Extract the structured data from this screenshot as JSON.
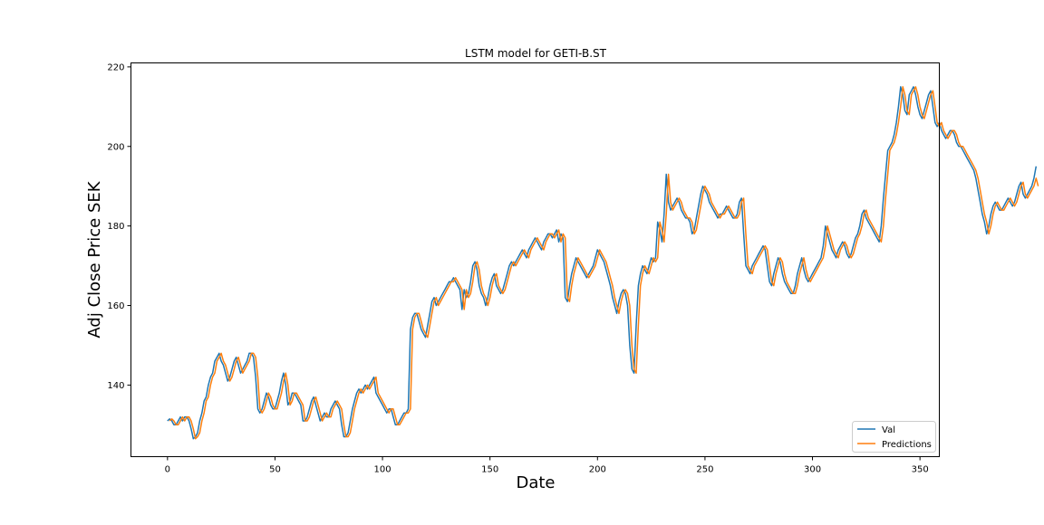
{
  "chart_data": {
    "type": "line",
    "title": "LSTM model for GETI-B.ST",
    "xlabel": "Date",
    "ylabel": "Adj Close Price SEK",
    "xlim": [
      -17,
      359
    ],
    "ylim": [
      122,
      221
    ],
    "xticks": [
      0,
      50,
      100,
      150,
      200,
      250,
      300,
      350
    ],
    "yticks": [
      140,
      160,
      180,
      200,
      220
    ],
    "grid": false,
    "legend": {
      "position": "lower-right"
    },
    "series": [
      {
        "name": "Val",
        "color": "#1f77b4",
        "x_start": 0,
        "values": [
          131,
          131.5,
          131,
          130,
          130,
          131,
          132,
          131,
          132,
          132,
          131,
          129,
          126.5,
          127,
          128,
          131,
          133,
          136,
          137,
          140,
          142,
          143,
          146,
          147,
          148,
          146,
          145,
          143,
          141,
          142,
          144,
          146,
          147,
          145,
          143,
          144,
          145,
          146,
          148,
          148,
          147,
          142,
          134,
          133,
          134,
          136,
          138,
          137,
          135,
          134,
          134,
          136,
          138,
          141,
          143,
          140,
          135,
          136,
          138,
          138,
          137,
          136,
          135,
          131,
          131,
          132,
          134,
          136,
          137,
          135,
          133,
          131,
          132,
          133,
          132,
          132,
          134,
          135,
          136,
          135,
          134,
          130,
          127,
          127,
          128,
          131,
          134,
          136,
          138,
          139,
          138,
          139,
          140,
          139,
          140,
          141,
          142,
          138,
          137,
          136,
          135,
          134,
          133,
          134,
          134,
          132,
          130,
          130,
          131,
          132,
          133,
          133,
          134,
          154,
          157,
          158,
          158,
          156,
          154,
          153,
          152,
          155,
          158,
          161,
          162,
          160,
          161,
          162,
          163,
          164,
          165,
          166,
          166,
          167,
          166,
          165,
          164,
          159,
          164,
          162,
          163,
          166,
          170,
          171,
          169,
          165,
          163,
          162,
          160,
          162,
          165,
          167,
          168,
          165,
          164,
          163,
          164,
          166,
          168,
          170,
          171,
          170,
          171,
          172,
          173,
          174,
          173,
          172,
          174,
          175,
          176,
          177,
          176,
          175,
          174,
          176,
          177,
          178,
          178,
          177,
          178,
          179,
          176,
          178,
          177,
          162,
          161,
          165,
          168,
          170,
          172,
          171,
          170,
          169,
          168,
          167,
          168,
          169,
          170,
          172,
          174,
          173,
          172,
          171,
          169,
          167,
          165,
          162,
          160,
          158,
          161,
          163,
          164,
          163,
          160,
          150,
          144,
          143,
          155,
          165,
          168,
          170,
          169,
          168,
          170,
          172,
          171,
          172,
          181,
          179,
          176,
          183,
          193,
          186,
          184,
          185,
          186,
          187,
          186,
          184,
          183,
          182,
          182,
          181,
          178,
          179,
          182,
          185,
          188,
          190,
          189,
          188,
          186,
          185,
          184,
          183,
          182,
          183,
          183,
          184,
          185,
          184,
          183,
          182,
          182,
          183,
          186,
          187,
          178,
          170,
          169,
          168,
          170,
          171,
          172,
          173,
          174,
          175,
          174,
          170,
          166,
          165,
          168,
          170,
          172,
          171,
          168,
          166,
          165,
          164,
          163,
          163,
          165,
          168,
          170,
          172,
          169,
          167,
          166,
          167,
          168,
          169,
          170,
          171,
          172,
          175,
          180,
          178,
          176,
          174,
          173,
          172,
          174,
          175,
          176,
          175,
          173,
          172,
          173,
          175,
          177,
          178,
          180,
          183,
          184,
          182,
          181,
          180,
          179,
          178,
          177,
          176,
          180,
          187,
          193,
          199,
          200,
          201,
          203,
          206,
          210,
          215,
          213,
          209,
          208,
          213,
          214,
          215,
          213,
          210,
          208,
          207,
          209,
          211,
          213,
          214,
          210,
          206,
          205,
          206,
          204,
          203,
          202,
          203,
          204,
          204,
          203,
          201,
          200,
          200,
          199,
          198,
          197,
          196,
          195,
          194,
          192,
          189,
          186,
          183,
          181,
          178,
          180,
          183,
          185,
          186,
          185,
          184,
          184,
          185,
          186,
          187,
          186,
          185,
          186,
          188,
          190,
          191,
          188,
          187,
          188,
          189,
          190,
          192,
          195
        ]
      },
      {
        "name": "Predictions",
        "color": "#ff7f0e",
        "x_start": 1,
        "values": [
          131,
          131.5,
          131,
          130,
          130,
          131,
          132,
          131,
          132,
          132,
          131,
          129,
          126.5,
          127,
          128,
          131,
          133,
          136,
          137,
          140,
          142,
          143,
          146,
          147,
          148,
          146,
          145,
          143,
          141,
          142,
          144,
          146,
          147,
          145,
          143,
          144,
          145,
          146,
          148,
          148,
          147,
          142,
          134,
          133,
          134,
          136,
          138,
          137,
          135,
          134,
          134,
          136,
          138,
          141,
          143,
          140,
          135,
          136,
          138,
          138,
          137,
          136,
          135,
          131,
          131,
          132,
          134,
          136,
          137,
          135,
          133,
          131,
          132,
          133,
          132,
          132,
          134,
          135,
          136,
          135,
          134,
          130,
          127,
          127,
          128,
          131,
          134,
          136,
          138,
          139,
          138,
          139,
          140,
          139,
          140,
          141,
          142,
          138,
          137,
          136,
          135,
          134,
          133,
          134,
          134,
          132,
          130,
          130,
          131,
          132,
          133,
          133,
          134,
          154,
          157,
          158,
          158,
          156,
          154,
          153,
          152,
          155,
          158,
          161,
          162,
          160,
          161,
          162,
          163,
          164,
          165,
          166,
          166,
          167,
          166,
          165,
          164,
          159,
          164,
          162,
          163,
          166,
          170,
          171,
          169,
          165,
          163,
          162,
          160,
          162,
          165,
          167,
          168,
          165,
          164,
          163,
          164,
          166,
          168,
          170,
          171,
          170,
          171,
          172,
          173,
          174,
          173,
          172,
          174,
          175,
          176,
          177,
          176,
          175,
          174,
          176,
          177,
          178,
          178,
          177,
          178,
          179,
          176,
          178,
          177,
          162,
          161,
          165,
          168,
          170,
          172,
          171,
          170,
          169,
          168,
          167,
          168,
          169,
          170,
          172,
          174,
          173,
          172,
          171,
          169,
          167,
          165,
          162,
          160,
          158,
          161,
          163,
          164,
          163,
          160,
          150,
          144,
          143,
          155,
          165,
          168,
          170,
          169,
          168,
          170,
          172,
          171,
          172,
          181,
          179,
          176,
          183,
          193,
          186,
          184,
          185,
          186,
          187,
          186,
          184,
          183,
          182,
          182,
          181,
          178,
          179,
          182,
          185,
          188,
          190,
          189,
          188,
          186,
          185,
          184,
          183,
          182,
          183,
          183,
          184,
          185,
          184,
          183,
          182,
          182,
          183,
          186,
          187,
          178,
          170,
          169,
          168,
          170,
          171,
          172,
          173,
          174,
          175,
          174,
          170,
          166,
          165,
          168,
          170,
          172,
          171,
          168,
          166,
          165,
          164,
          163,
          163,
          165,
          168,
          170,
          172,
          169,
          167,
          166,
          167,
          168,
          169,
          170,
          171,
          172,
          175,
          180,
          178,
          176,
          174,
          173,
          172,
          174,
          175,
          176,
          175,
          173,
          172,
          173,
          175,
          177,
          178,
          180,
          183,
          184,
          182,
          181,
          180,
          179,
          178,
          177,
          176,
          180,
          187,
          193,
          199,
          200,
          201,
          203,
          206,
          210,
          215,
          213,
          209,
          208,
          213,
          214,
          215,
          213,
          210,
          208,
          207,
          209,
          211,
          213,
          214,
          210,
          206,
          205,
          206,
          204,
          203,
          202,
          203,
          204,
          204,
          203,
          201,
          200,
          200,
          199,
          198,
          197,
          196,
          195,
          194,
          192,
          189,
          186,
          183,
          181,
          178,
          180,
          183,
          185,
          186,
          185,
          184,
          184,
          185,
          186,
          187,
          186,
          185,
          186,
          188,
          190,
          191,
          188,
          187,
          188,
          189,
          190,
          192,
          190
        ]
      }
    ]
  }
}
